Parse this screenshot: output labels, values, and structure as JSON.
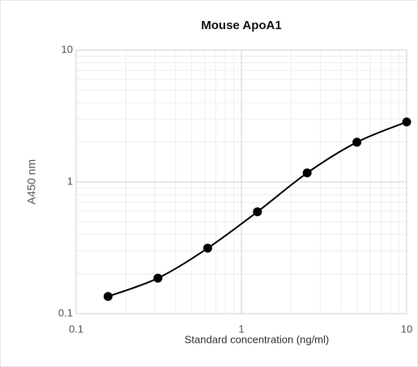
{
  "chart_data": {
    "type": "scatter",
    "title": "Mouse ApoA1",
    "x_label": "Standard concentration (ng/ml)",
    "y_label": "A450 nm",
    "x": [
      0.156,
      0.3125,
      0.625,
      1.25,
      2.5,
      5,
      10
    ],
    "values": [
      0.135,
      0.186,
      0.314,
      0.593,
      1.17,
      2.0,
      2.85
    ],
    "color": "#000000",
    "curve": true,
    "xlim": [
      0.1,
      10
    ],
    "ylim": [
      0.1,
      10
    ],
    "xticks": [
      0.1,
      1,
      10
    ],
    "yticks": [
      0.1,
      1,
      10
    ],
    "log_x": true,
    "log_y": true,
    "grid": true,
    "minor_grid": true
  }
}
